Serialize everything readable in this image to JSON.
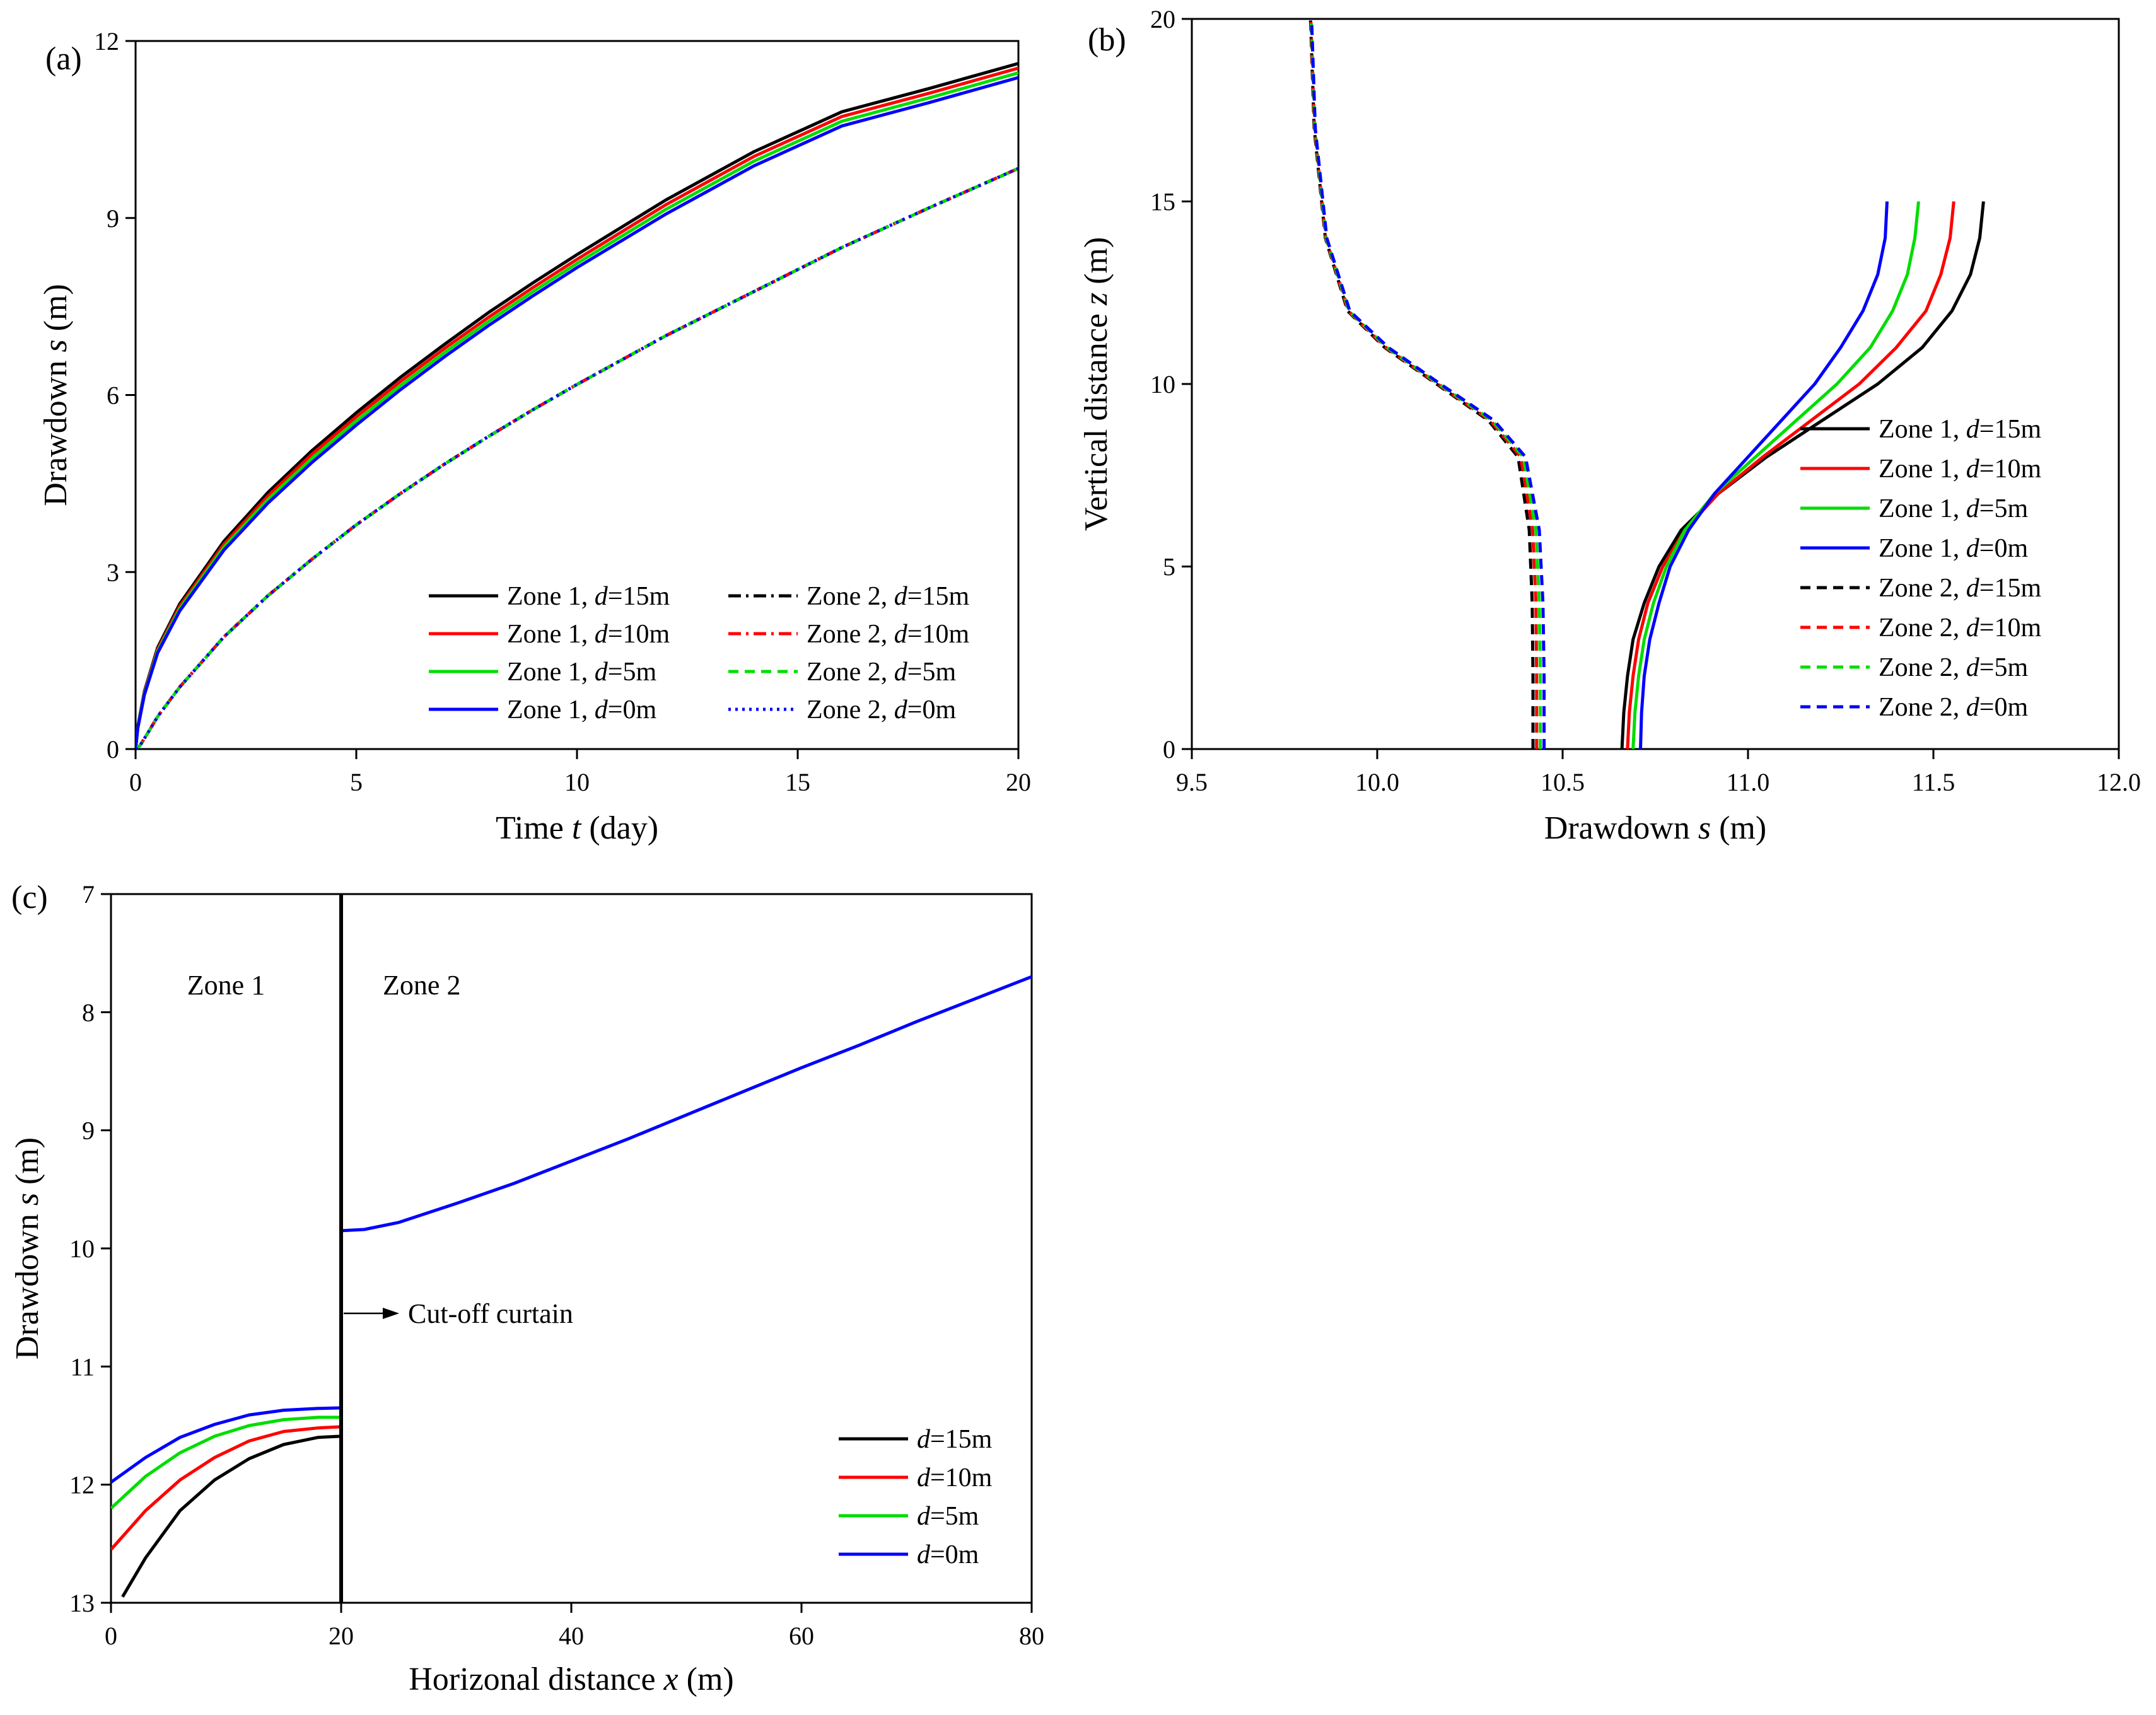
{
  "chart_data": [
    {
      "id": "a",
      "type": "line",
      "panel_label": "(a)",
      "xlabel": {
        "prefix": "Time ",
        "var": "t",
        "suffix": " (day)"
      },
      "ylabel": {
        "prefix": "Drawdown ",
        "var": "s",
        "suffix": " (m)"
      },
      "xlim": [
        0,
        20
      ],
      "ylim": [
        0,
        12
      ],
      "xticks": [
        0,
        5,
        10,
        15,
        20
      ],
      "xtick_labels": [
        "0",
        "5",
        "10",
        "15",
        "20"
      ],
      "yticks": [
        0,
        3,
        6,
        9,
        12
      ],
      "ytick_labels": [
        "0",
        "3",
        "6",
        "9",
        "12"
      ],
      "series": [
        {
          "name": "Zone 1, d=15m",
          "label_pre": "Zone 1, ",
          "label_var": "d",
          "label_post": "=15m",
          "color": "#000000",
          "dash": "solid",
          "x": [
            0,
            0.05,
            0.2,
            0.5,
            1,
            2,
            3,
            4,
            5,
            6,
            7,
            8,
            9,
            10,
            12,
            14,
            16,
            18,
            20
          ],
          "y": [
            0,
            0.38,
            0.98,
            1.72,
            2.46,
            3.52,
            4.35,
            5.06,
            5.7,
            6.3,
            6.86,
            7.4,
            7.9,
            8.38,
            9.3,
            10.12,
            10.8,
            11.2,
            11.62
          ]
        },
        {
          "name": "Zone 1, d=10m",
          "label_pre": "Zone 1, ",
          "label_var": "d",
          "label_post": "=10m",
          "color": "#ff0000",
          "dash": "solid",
          "x": [
            0,
            0.05,
            0.2,
            0.5,
            1,
            2,
            3,
            4,
            5,
            6,
            7,
            8,
            9,
            10,
            12,
            14,
            16,
            18,
            20
          ],
          "y": [
            0,
            0.37,
            0.96,
            1.69,
            2.42,
            3.47,
            4.29,
            5.0,
            5.63,
            6.23,
            6.79,
            7.32,
            7.82,
            8.3,
            9.22,
            10.04,
            10.72,
            11.12,
            11.54
          ]
        },
        {
          "name": "Zone 1, d=5m",
          "label_pre": "Zone 1, ",
          "label_var": "d",
          "label_post": "=5m",
          "color": "#00dd00",
          "dash": "solid",
          "x": [
            0,
            0.05,
            0.2,
            0.5,
            1,
            2,
            3,
            4,
            5,
            6,
            7,
            8,
            9,
            10,
            12,
            14,
            16,
            18,
            20
          ],
          "y": [
            0,
            0.36,
            0.94,
            1.66,
            2.38,
            3.42,
            4.23,
            4.93,
            5.56,
            6.16,
            6.72,
            7.25,
            7.75,
            8.23,
            9.14,
            9.96,
            10.64,
            11.04,
            11.46
          ]
        },
        {
          "name": "Zone 1, d=0m",
          "label_pre": "Zone 1, ",
          "label_var": "d",
          "label_post": "=0m",
          "color": "#0000ff",
          "dash": "solid",
          "x": [
            0,
            0.05,
            0.2,
            0.5,
            1,
            2,
            3,
            4,
            5,
            6,
            7,
            8,
            9,
            10,
            12,
            14,
            16,
            18,
            20
          ],
          "y": [
            0,
            0.35,
            0.92,
            1.63,
            2.34,
            3.37,
            4.17,
            4.86,
            5.49,
            6.09,
            6.65,
            7.18,
            7.68,
            8.16,
            9.06,
            9.88,
            10.56,
            10.96,
            11.38
          ]
        },
        {
          "name": "Zone 2, d=15m",
          "label_pre": "Zone 2, ",
          "label_var": "d",
          "label_post": "=15m",
          "color": "#000000",
          "dash": "dashdot",
          "x": [
            0,
            0.1,
            0.3,
            0.5,
            1,
            2,
            3,
            4,
            5,
            6,
            7,
            8,
            9,
            10,
            12,
            14,
            16,
            18,
            20
          ],
          "y": [
            0,
            0.06,
            0.3,
            0.55,
            1.05,
            1.9,
            2.6,
            3.22,
            3.8,
            4.33,
            4.83,
            5.3,
            5.75,
            6.18,
            7.0,
            7.75,
            8.5,
            9.18,
            9.84
          ]
        },
        {
          "name": "Zone 2, d=10m",
          "label_pre": "Zone 2, ",
          "label_var": "d",
          "label_post": "=10m",
          "color": "#ff0000",
          "dash": "dashdot",
          "x": [
            0,
            0.1,
            0.3,
            0.5,
            1,
            2,
            3,
            4,
            5,
            6,
            7,
            8,
            9,
            10,
            12,
            14,
            16,
            18,
            20
          ],
          "y": [
            0,
            0.06,
            0.3,
            0.55,
            1.05,
            1.9,
            2.6,
            3.22,
            3.8,
            4.33,
            4.83,
            5.3,
            5.75,
            6.18,
            7.0,
            7.75,
            8.5,
            9.18,
            9.84
          ]
        },
        {
          "name": "Zone 2, d=5m",
          "label_pre": "Zone 2, ",
          "label_var": "d",
          "label_post": "=5m",
          "color": "#00dd00",
          "dash": "dashed",
          "x": [
            0,
            0.1,
            0.3,
            0.5,
            1,
            2,
            3,
            4,
            5,
            6,
            7,
            8,
            9,
            10,
            12,
            14,
            16,
            18,
            20
          ],
          "y": [
            0,
            0.06,
            0.3,
            0.55,
            1.05,
            1.9,
            2.6,
            3.22,
            3.8,
            4.33,
            4.83,
            5.3,
            5.75,
            6.18,
            7.0,
            7.75,
            8.5,
            9.18,
            9.84
          ]
        },
        {
          "name": "Zone 2, d=0m",
          "label_pre": "Zone 2, ",
          "label_var": "d",
          "label_post": "=0m",
          "color": "#0000ff",
          "dash": "dotted",
          "x": [
            0,
            0.1,
            0.3,
            0.5,
            1,
            2,
            3,
            4,
            5,
            6,
            7,
            8,
            9,
            10,
            12,
            14,
            16,
            18,
            20
          ],
          "y": [
            0,
            0.06,
            0.3,
            0.55,
            1.05,
            1.9,
            2.6,
            3.22,
            3.8,
            4.33,
            4.83,
            5.3,
            5.75,
            6.18,
            7.0,
            7.75,
            8.5,
            9.18,
            9.84
          ]
        }
      ],
      "legend_position": "bottom-right"
    },
    {
      "id": "b",
      "type": "line",
      "panel_label": "(b)",
      "xlabel": {
        "prefix": "Drawdown ",
        "var": "s",
        "suffix": " (m)"
      },
      "ylabel": {
        "prefix": "Vertical distance ",
        "var": "z",
        "suffix": " (m)"
      },
      "xlim": [
        9.5,
        12.0
      ],
      "ylim": [
        0,
        20
      ],
      "xticks": [
        9.5,
        10.0,
        10.5,
        11.0,
        11.5,
        12.0
      ],
      "xtick_labels": [
        "9.5",
        "10.0",
        "10.5",
        "11.0",
        "11.5",
        "12.0"
      ],
      "yticks": [
        0,
        5,
        10,
        15,
        20
      ],
      "ytick_labels": [
        "0",
        "5",
        "10",
        "15",
        "20"
      ],
      "series": [
        {
          "name": "Zone 1, d=15m",
          "label_pre": "Zone 1, ",
          "label_var": "d",
          "label_post": "=15m",
          "color": "#000000",
          "dash": "solid",
          "x": [
            10.66,
            10.665,
            10.675,
            10.69,
            10.72,
            10.76,
            10.82,
            10.92,
            11.05,
            11.2,
            11.35,
            11.47,
            11.55,
            11.6,
            11.625,
            11.635
          ],
          "y": [
            0,
            1,
            2,
            3,
            4,
            5,
            6,
            7,
            8,
            9,
            10,
            11,
            12,
            13,
            14,
            15
          ]
        },
        {
          "name": "Zone 1, d=10m",
          "label_pre": "Zone 1, ",
          "label_var": "d",
          "label_post": "=10m",
          "color": "#ff0000",
          "dash": "solid",
          "x": [
            10.675,
            10.68,
            10.69,
            10.705,
            10.73,
            10.77,
            10.83,
            10.92,
            11.04,
            11.17,
            11.3,
            11.4,
            11.48,
            11.52,
            11.545,
            11.555
          ],
          "y": [
            0,
            1,
            2,
            3,
            4,
            5,
            6,
            7,
            8,
            9,
            10,
            11,
            12,
            13,
            14,
            15
          ]
        },
        {
          "name": "Zone 1, d=5m",
          "label_pre": "Zone 1, ",
          "label_var": "d",
          "label_post": "=5m",
          "color": "#00dd00",
          "dash": "solid",
          "x": [
            10.69,
            10.695,
            10.705,
            10.72,
            10.745,
            10.78,
            10.83,
            10.91,
            11.02,
            11.13,
            11.24,
            11.33,
            11.39,
            11.43,
            11.45,
            11.46
          ],
          "y": [
            0,
            1,
            2,
            3,
            4,
            5,
            6,
            7,
            8,
            9,
            10,
            11,
            12,
            13,
            14,
            15
          ]
        },
        {
          "name": "Zone 1, d=0m",
          "label_pre": "Zone 1, ",
          "label_var": "d",
          "label_post": "=0m",
          "color": "#0000ff",
          "dash": "solid",
          "x": [
            10.71,
            10.713,
            10.72,
            10.735,
            10.76,
            10.79,
            10.84,
            10.91,
            11.0,
            11.09,
            11.18,
            11.25,
            11.31,
            11.35,
            11.37,
            11.375
          ],
          "y": [
            0,
            1,
            2,
            3,
            4,
            5,
            6,
            7,
            8,
            9,
            10,
            11,
            12,
            13,
            14,
            15
          ]
        },
        {
          "name": "Zone 2, d=15m",
          "label_pre": "Zone 2, ",
          "label_var": "d",
          "label_post": "=15m",
          "color": "#000000",
          "dash": "dashed",
          "x": [
            10.42,
            10.42,
            10.418,
            10.41,
            10.38,
            10.3,
            10.16,
            10.02,
            9.92,
            9.86,
            9.83,
            9.82
          ],
          "y": [
            0,
            2,
            4,
            6,
            8,
            9,
            10,
            11,
            12,
            14,
            17,
            20
          ]
        },
        {
          "name": "Zone 2, d=10m",
          "label_pre": "Zone 2, ",
          "label_var": "d",
          "label_post": "=10m",
          "color": "#ff0000",
          "dash": "dashed",
          "x": [
            10.43,
            10.43,
            10.428,
            10.419,
            10.387,
            10.305,
            10.163,
            10.023,
            9.922,
            9.861,
            9.831,
            9.821
          ],
          "y": [
            0,
            2,
            4,
            6,
            8,
            9,
            10,
            11,
            12,
            14,
            17,
            20
          ]
        },
        {
          "name": "Zone 2, d=5m",
          "label_pre": "Zone 2, ",
          "label_var": "d",
          "label_post": "=5m",
          "color": "#00dd00",
          "dash": "dashed",
          "x": [
            10.44,
            10.44,
            10.437,
            10.428,
            10.394,
            10.31,
            10.166,
            10.026,
            9.924,
            9.862,
            9.832,
            9.822
          ],
          "y": [
            0,
            2,
            4,
            6,
            8,
            9,
            10,
            11,
            12,
            14,
            17,
            20
          ]
        },
        {
          "name": "Zone 2, d=0m",
          "label_pre": "Zone 2, ",
          "label_var": "d",
          "label_post": "=0m",
          "color": "#0000ff",
          "dash": "dashed",
          "x": [
            10.45,
            10.45,
            10.447,
            10.437,
            10.4,
            10.315,
            10.17,
            10.03,
            9.926,
            9.864,
            9.833,
            9.823
          ],
          "y": [
            0,
            2,
            4,
            6,
            8,
            9,
            10,
            11,
            12,
            14,
            17,
            20
          ]
        }
      ],
      "legend_position": "right"
    },
    {
      "id": "c",
      "type": "line",
      "panel_label": "(c)",
      "xlabel": {
        "prefix": "Horizonal distance ",
        "var": "x",
        "suffix": " (m)"
      },
      "ylabel": {
        "prefix": "Drawdown ",
        "var": "s",
        "suffix": " (m)"
      },
      "xlim": [
        0,
        80
      ],
      "ylim": [
        13,
        7
      ],
      "y_inverted": true,
      "xticks": [
        0,
        20,
        40,
        60,
        80
      ],
      "xtick_labels": [
        "0",
        "20",
        "40",
        "60",
        "80"
      ],
      "yticks": [
        7,
        8,
        9,
        10,
        11,
        12,
        13
      ],
      "ytick_labels": [
        "7",
        "8",
        "9",
        "10",
        "11",
        "12",
        "13"
      ],
      "annotations": {
        "zone1": "Zone 1",
        "zone2": "Zone 2",
        "curtain": "Cut-off curtain",
        "curtain_x": 20
      },
      "series": [
        {
          "name": "d=15m",
          "label_pre": "",
          "label_var": "d",
          "label_post": "=15m",
          "color": "#000000",
          "dash": "solid",
          "x": [
            1,
            3,
            6,
            9,
            12,
            15,
            18,
            20
          ],
          "y": [
            12.95,
            12.62,
            12.22,
            11.96,
            11.78,
            11.66,
            11.6,
            11.59
          ]
        },
        {
          "name": "d=10m",
          "label_pre": "",
          "label_var": "d",
          "label_post": "=10m",
          "color": "#ff0000",
          "dash": "solid",
          "x": [
            0,
            3,
            6,
            9,
            12,
            15,
            18,
            20
          ],
          "y": [
            12.55,
            12.22,
            11.96,
            11.77,
            11.63,
            11.55,
            11.52,
            11.51
          ]
        },
        {
          "name": "d=5m",
          "label_pre": "",
          "label_var": "d",
          "label_post": "=5m",
          "color": "#00dd00",
          "dash": "solid",
          "x": [
            0,
            3,
            6,
            9,
            12,
            15,
            18,
            20
          ],
          "y": [
            12.2,
            11.93,
            11.73,
            11.59,
            11.5,
            11.45,
            11.43,
            11.43
          ]
        },
        {
          "name": "d=0m",
          "label_pre": "",
          "label_var": "d",
          "label_post": "=0m",
          "color": "#0000ff",
          "dash": "solid",
          "x": [
            0,
            3,
            6,
            9,
            12,
            15,
            18,
            20
          ],
          "y": [
            11.98,
            11.77,
            11.6,
            11.49,
            11.41,
            11.37,
            11.355,
            11.35
          ]
        }
      ],
      "zone2_series": {
        "name": "Zone 2 drawdown",
        "color": "#0000ff",
        "x": [
          20,
          22,
          25,
          30,
          35,
          40,
          45,
          50,
          55,
          60,
          65,
          70,
          75,
          80
        ],
        "y": [
          9.85,
          9.84,
          9.78,
          9.62,
          9.45,
          9.26,
          9.07,
          8.87,
          8.67,
          8.47,
          8.28,
          8.08,
          7.89,
          7.7
        ]
      },
      "legend_position": "bottom-right"
    }
  ]
}
